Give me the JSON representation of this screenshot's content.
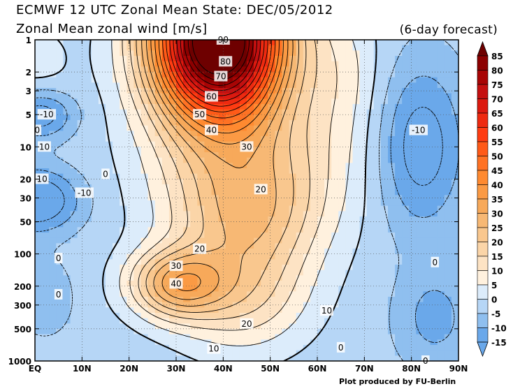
{
  "header": {
    "title": "ECMWF 12 UTC Zonal Mean State: DEC/05/2012",
    "subtitle": "Zonal Mean zonal wind [m/s]",
    "forecast": "(6-day forecast)",
    "credit": "Plot produced by FU-Berlin"
  },
  "chart_data": {
    "type": "contour",
    "title": "Zonal Mean zonal wind [m/s]",
    "x_axis": {
      "range": [
        0,
        90
      ],
      "ticks": [
        {
          "value": 0,
          "label": "EQ"
        },
        {
          "value": 10,
          "label": "10N"
        },
        {
          "value": 20,
          "label": "20N"
        },
        {
          "value": 30,
          "label": "30N"
        },
        {
          "value": 40,
          "label": "40N"
        },
        {
          "value": 50,
          "label": "50N"
        },
        {
          "value": 60,
          "label": "60N"
        },
        {
          "value": 70,
          "label": "70N"
        },
        {
          "value": 80,
          "label": "80N"
        },
        {
          "value": 90,
          "label": "90N"
        }
      ]
    },
    "y_axis": {
      "scale": "log",
      "units": "hPa",
      "range": [
        1000,
        1
      ],
      "ticks": [
        1,
        2,
        3,
        5,
        10,
        20,
        30,
        50,
        100,
        200,
        300,
        500,
        1000
      ]
    },
    "grid": true,
    "colorbar": {
      "placement": "right",
      "levels": [
        85,
        80,
        75,
        70,
        65,
        60,
        55,
        50,
        45,
        40,
        35,
        30,
        25,
        20,
        15,
        10,
        5,
        0,
        -5,
        -10,
        -15
      ],
      "colors": [
        "#6e0000",
        "#8c0000",
        "#a80505",
        "#c41010",
        "#dc1a10",
        "#ee2a10",
        "#ff3c12",
        "#ff5a18",
        "#ff7224",
        "#ff8a30",
        "#fb9a44",
        "#f7a95a",
        "#f7b874",
        "#f9c78e",
        "#fbd5a8",
        "#fde3c4",
        "#fff1de",
        "#dcecfb",
        "#b6d6f6",
        "#8fbfef",
        "#6aa8ea"
      ]
    },
    "contour_labels": [
      {
        "value": "90",
        "lat": 40,
        "p": 1
      },
      {
        "value": "80",
        "lat": 40.5,
        "p": 1.6
      },
      {
        "value": "70",
        "lat": 39.5,
        "p": 2.2
      },
      {
        "value": "60",
        "lat": 37.5,
        "p": 3.4
      },
      {
        "value": "50",
        "lat": 35,
        "p": 5
      },
      {
        "value": "40",
        "lat": 37.5,
        "p": 7
      },
      {
        "value": "30",
        "lat": 45,
        "p": 10
      },
      {
        "value": "20",
        "lat": 48,
        "p": 25
      },
      {
        "value": "-10",
        "lat": 2.5,
        "p": 5
      },
      {
        "value": "0",
        "lat": 0.5,
        "p": 7
      },
      {
        "value": "10",
        "lat": 2,
        "p": 10
      },
      {
        "value": "-10",
        "lat": 81.5,
        "p": 7
      },
      {
        "value": "10",
        "lat": 1.5,
        "p": 20
      },
      {
        "value": "-10",
        "lat": 10.5,
        "p": 27
      },
      {
        "value": "0",
        "lat": 15,
        "p": 18
      },
      {
        "value": "20",
        "lat": 35,
        "p": 90
      },
      {
        "value": "30",
        "lat": 30,
        "p": 130
      },
      {
        "value": "40",
        "lat": 30,
        "p": 190
      },
      {
        "value": "0",
        "lat": 5,
        "p": 110
      },
      {
        "value": "0",
        "lat": 5,
        "p": 240
      },
      {
        "value": "10",
        "lat": 62,
        "p": 340
      },
      {
        "value": "20",
        "lat": 45,
        "p": 450
      },
      {
        "value": "10",
        "lat": 38,
        "p": 770
      },
      {
        "value": "0",
        "lat": 65,
        "p": 750
      },
      {
        "value": "0",
        "lat": 85,
        "p": 120
      },
      {
        "value": "0",
        "lat": 83,
        "p": 1000
      }
    ]
  }
}
